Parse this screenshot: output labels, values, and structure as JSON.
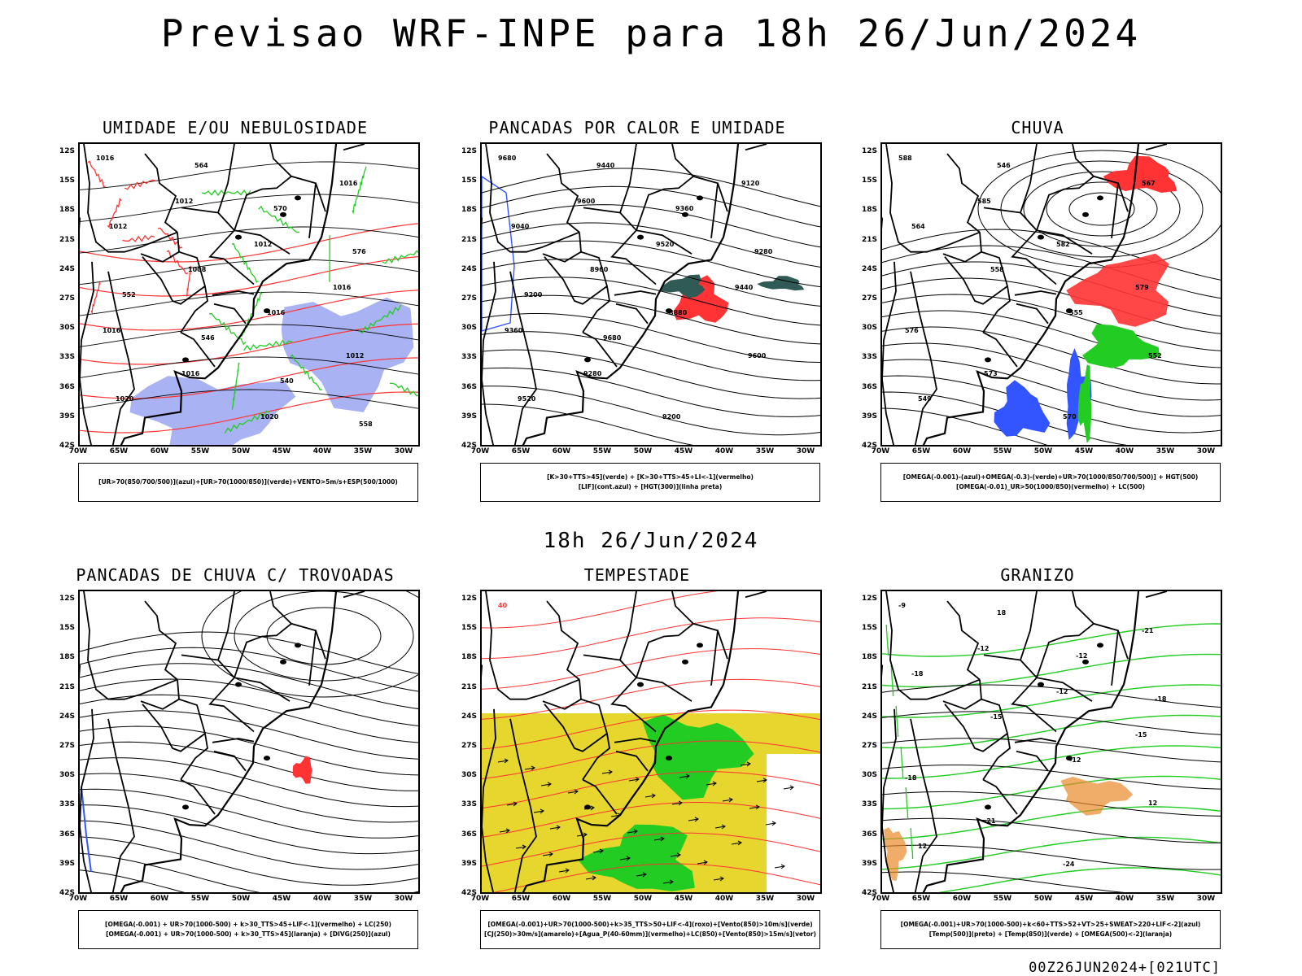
{
  "title": "Previsao WRF-INPE  para 18h 26/Jun/2024",
  "mid_time": "18h 26/Jun/2024",
  "footer": "00Z26JUN2024+[021UTC]",
  "lat_labels": [
    "12S",
    "15S",
    "18S",
    "21S",
    "24S",
    "27S",
    "30S",
    "33S",
    "36S",
    "39S",
    "42S"
  ],
  "lon_labels": [
    "70W",
    "65W",
    "60W",
    "55W",
    "50W",
    "45W",
    "40W",
    "35W",
    "30W"
  ],
  "panels": [
    {
      "title": "UMIDADE E/OU NEBULOSIDADE",
      "legend": [
        "[UR>70(850/700/500)](azul)+[UR>70(1000/850)](verde)+VENTO>5m/s+ESP(500/1000)"
      ],
      "contour_labels": [
        "1016",
        "1012",
        "1012",
        "1016",
        "1016",
        "1016",
        "1020",
        "1016",
        "1012",
        "1008",
        "1016",
        "1012",
        "1020",
        "564",
        "570",
        "576",
        "552",
        "546",
        "540",
        "558"
      ]
    },
    {
      "title": "PANCADAS POR CALOR E UMIDADE",
      "legend": [
        "[K>30+TTS>45](verde) + [K>30+TTS>45+LI<-1](vermelho)",
        "[LIF](cont.azul) + [HGT(300)](linha preta)"
      ],
      "contour_labels": [
        "9680",
        "9600",
        "9520",
        "9440",
        "9360",
        "9280",
        "9200",
        "9120",
        "9040",
        "8960",
        "8880",
        "9600",
        "9520",
        "9440",
        "9360",
        "9280",
        "9200",
        "9680"
      ]
    },
    {
      "title": "CHUVA",
      "legend": [
        "[OMEGA(-0.001)-(azul)+OMEGA(-0.3)-(verde)+UR>70(1000/850/700/500)] + HGT(500)",
        "[OMEGA(-0.01)_UR>50(1000/850)(vermelho) + LC(500)"
      ],
      "contour_labels": [
        "588",
        "585",
        "582",
        "579",
        "576",
        "573",
        "570",
        "567",
        "564",
        "558",
        "555",
        "552",
        "549",
        "546"
      ]
    },
    {
      "title": "PANCADAS DE CHUVA C/ TROVOADAS",
      "legend": [
        "[OMEGA(-0.001) + UR>70(1000-500) + k>30_TTS>45+LIF<-1](vermelho) + LC(250)",
        "[OMEGA(-0.001) + UR>70(1000-500) + k>30_TTS>45](laranja) + [DIVG(250)](azul)"
      ],
      "contour_labels": []
    },
    {
      "title": "TEMPESTADE",
      "legend": [
        "[OMEGA(-0.001)+UR>70(1000-500)+k>35_TTS>50+LIF<-4](roxo)+[Vento(850)>10m/s](verde)",
        "[CJ(250)>30m/s](amarelo)+[Agua_P(40-60mm)](vermelho)+LC(850)+[Vento(850)>15m/s](vetor)"
      ],
      "contour_labels": [
        "40"
      ]
    },
    {
      "title": "GRANIZO",
      "legend": [
        "[OMEGA(-0.001)+UR>70(1000-500)+k<60+TTS>52+VT>25+SWEAT>220+LIF<-2](azul)",
        "[Temp(500)](preto) + [Temp(850)](verde) + [OMEGA(500)<-2](laranja)"
      ],
      "contour_labels": [
        "-9",
        "-12",
        "-12",
        "-15",
        "-18",
        "-21",
        "-24",
        "-21",
        "-18",
        "-15",
        "-12",
        "12",
        "12",
        "18",
        "-12",
        "-18"
      ]
    }
  ],
  "colors": {
    "coast": "#000000",
    "blue": "#3355ff",
    "green": "#22cc22",
    "red": "#ff3333",
    "yellow": "#e6d62e",
    "orange": "#e88a2a",
    "lightblue": "#9aa4f0",
    "teal": "#2f5a55"
  }
}
